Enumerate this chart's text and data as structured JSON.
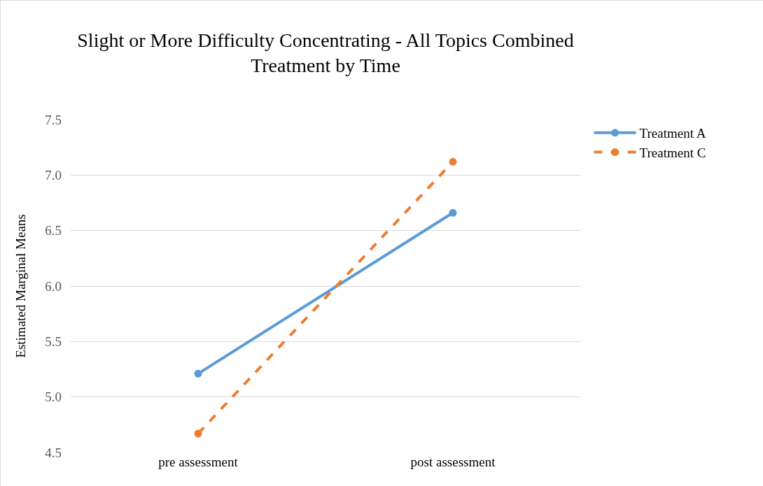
{
  "chart_data": {
    "type": "line",
    "title": "Slight or More Difficulty Concentrating - All Topics Combined",
    "subtitle": "Treatment by Time",
    "ylabel": "Estimated Marginal Means",
    "categories": [
      "pre assessment",
      "post assessment"
    ],
    "series": [
      {
        "name": "Treatment A",
        "color": "#5b9bd5",
        "values": [
          5.21,
          6.66
        ],
        "line_style": "solid"
      },
      {
        "name": "Treatment C",
        "color": "#ed7d31",
        "values": [
          4.67,
          7.12
        ],
        "line_style": "dashed"
      }
    ],
    "ylim": [
      4.5,
      7.5
    ],
    "yticks": [
      {
        "value": 4.5,
        "label": "4.5"
      },
      {
        "value": 5,
        "label": "5.0"
      },
      {
        "value": 5.5,
        "label": "5.5"
      },
      {
        "value": 6,
        "label": "6.0"
      },
      {
        "value": 6.5,
        "label": "6.5"
      },
      {
        "value": 7,
        "label": "7.0"
      },
      {
        "value": 7.5,
        "label": "7.5"
      }
    ],
    "grid": "y",
    "legend": "top right",
    "marker": "circle"
  }
}
